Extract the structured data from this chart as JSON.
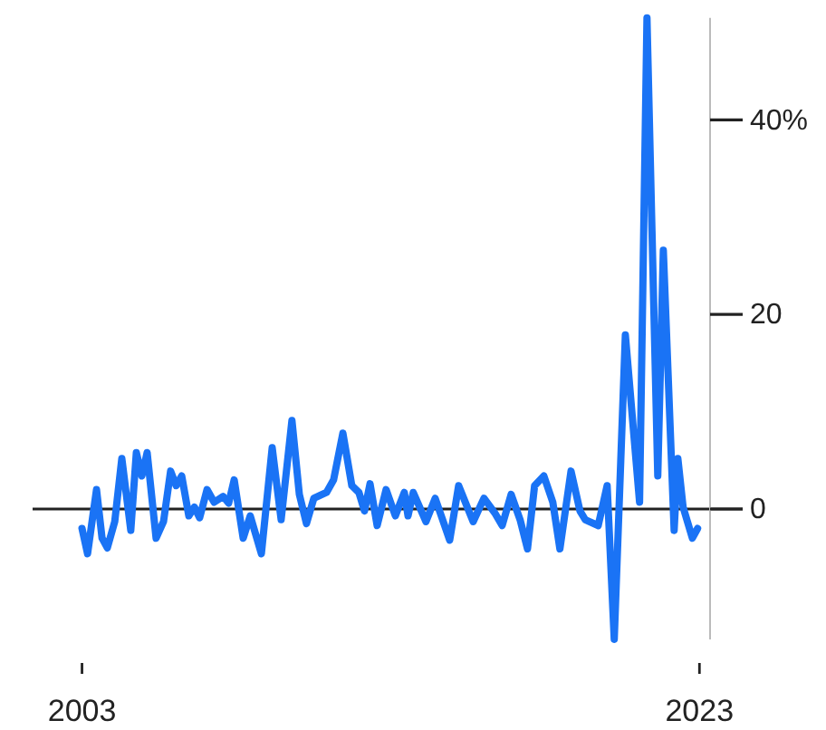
{
  "chart_data": {
    "type": "line",
    "x": [
      2003.0,
      2003.18,
      2003.47,
      2003.65,
      2003.82,
      2004.06,
      2004.29,
      2004.58,
      2004.76,
      2004.94,
      2005.11,
      2005.4,
      2005.64,
      2005.87,
      2006.05,
      2006.23,
      2006.46,
      2006.64,
      2006.81,
      2007.05,
      2007.28,
      2007.57,
      2007.75,
      2007.93,
      2008.22,
      2008.45,
      2008.81,
      2009.16,
      2009.45,
      2009.8,
      2010.04,
      2010.27,
      2010.51,
      2010.92,
      2011.15,
      2011.45,
      2011.74,
      2011.97,
      2012.15,
      2012.33,
      2012.56,
      2012.85,
      2013.15,
      2013.44,
      2013.56,
      2013.73,
      2014.14,
      2014.44,
      2014.91,
      2015.2,
      2015.67,
      2016.02,
      2016.37,
      2016.61,
      2016.9,
      2017.19,
      2017.43,
      2017.66,
      2017.96,
      2018.25,
      2018.48,
      2018.84,
      2019.13,
      2019.3,
      2019.72,
      2020.01,
      2020.24,
      2020.6,
      2021.06,
      2021.3,
      2021.65,
      2021.83,
      2022.18,
      2022.3,
      2022.47,
      2022.77,
      2022.94
    ],
    "series": [
      {
        "color": "#1a73f5",
        "values": [
          -2,
          -4.6,
          2,
          -3,
          -4,
          -1.3,
          5.2,
          -2.2,
          5.8,
          3.4,
          5.8,
          -3,
          -1.3,
          3.9,
          2.4,
          3.4,
          -0.7,
          0.2,
          -0.9,
          2,
          0.7,
          1.3,
          0.6,
          3,
          -3,
          -0.7,
          -4.6,
          6.3,
          -1.1,
          9.1,
          1.5,
          -1.5,
          1.1,
          1.7,
          3,
          7.8,
          2.4,
          1.7,
          -0.2,
          2.6,
          -1.7,
          2,
          -0.7,
          1.7,
          -0.7,
          1.7,
          -1.3,
          1.1,
          -3.2,
          2.4,
          -1.3,
          1.1,
          -0.4,
          -1.7,
          1.5,
          -1.1,
          -4.1,
          2.4,
          3.4,
          0.7,
          -4.1,
          3.9,
          -0.2,
          -1.1,
          -1.7,
          2.4,
          -13.4,
          17.9,
          0.7,
          50.5,
          3.4,
          26.6,
          -2.2,
          5.2,
          0.2,
          -3,
          -2
        ]
      }
    ],
    "xlim": [
      2001.4,
      2024.4
    ],
    "xticks": [
      2003,
      2023
    ],
    "ylim": [
      -13.4,
      50.5
    ],
    "yticks": [
      0,
      20,
      {
        "value": 40,
        "label": "40%"
      }
    ],
    "ref_lines": [
      {
        "axis": "y",
        "value": 0,
        "color": "#222222"
      }
    ],
    "grid": false
  }
}
